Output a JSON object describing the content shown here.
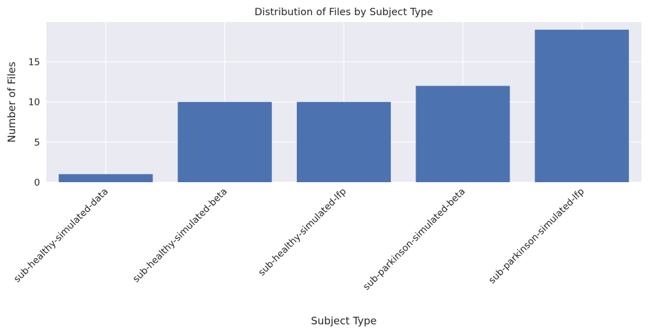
{
  "chart_data": {
    "type": "bar",
    "title": "Distribution of Files by Subject Type",
    "xlabel": "Subject Type",
    "ylabel": "Number of Files",
    "categories": [
      "sub-healthy-simulated-data",
      "sub-healthy-simulated-beta",
      "sub-healthy-simulated-lfp",
      "sub-parkinson-simulated-beta",
      "sub-parkinson-simulated-lfp"
    ],
    "values": [
      1,
      10,
      10,
      12,
      19
    ],
    "ylim": [
      0,
      19.95
    ],
    "yticks": [
      0,
      5,
      10,
      15
    ],
    "grid": true,
    "bar_color": "#4c72b0",
    "background_color": "#eaeaf2",
    "tick_label_rotation": 45
  }
}
